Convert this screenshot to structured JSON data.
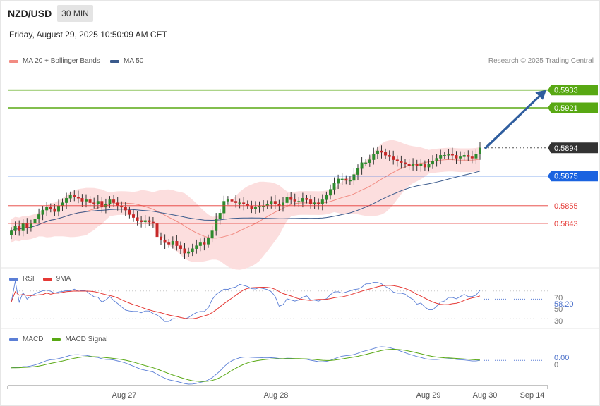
{
  "header": {
    "symbol": "NZD/USD",
    "timeframe": "30 MIN",
    "datetime": "Friday, August 29, 2025 10:50:09 AM CET",
    "credit": "Research © 2025 Trading Central"
  },
  "colors": {
    "ma20": "#f28b82",
    "ma50": "#3a5a8c",
    "band_fill": "#fcdede",
    "resistance": "#58a813",
    "support": "#1a63e0",
    "pivot_red": "#e53935",
    "candle_up": "#2e8b2e",
    "candle_down": "#c62828",
    "arrow": "#2f5d9e",
    "rsi": "#5b7fd6",
    "rsi_ma": "#e53935",
    "macd": "#5b7fd6",
    "macd_signal": "#58a813"
  },
  "chart_data": [
    {
      "type": "candlestick",
      "legend": [
        "MA 20 + Bollinger Bands",
        "MA 50"
      ],
      "x_ticks": [
        "Aug 27",
        "Aug 28",
        "Aug 29",
        "Aug 30",
        "Sep 14"
      ],
      "ylim": [
        0.5814,
        0.595
      ],
      "levels": [
        {
          "value": 0.5933,
          "label": "0.5933",
          "kind": "resistance"
        },
        {
          "value": 0.5921,
          "label": "0.5921",
          "kind": "resistance"
        },
        {
          "value": 0.5894,
          "label": "0.5894",
          "kind": "last"
        },
        {
          "value": 0.5875,
          "label": "0.5875",
          "kind": "support"
        },
        {
          "value": 0.5855,
          "label": "0.5855",
          "kind": "pivot"
        },
        {
          "value": 0.5843,
          "label": "0.5843",
          "kind": "pivot"
        }
      ],
      "close": [
        0.5838,
        0.5841,
        0.5838,
        0.5843,
        0.584,
        0.5843,
        0.5846,
        0.5849,
        0.5852,
        0.5854,
        0.5853,
        0.5851,
        0.5855,
        0.5857,
        0.586,
        0.5862,
        0.5861,
        0.586,
        0.5858,
        0.5859,
        0.5857,
        0.5856,
        0.5858,
        0.5854,
        0.5856,
        0.5859,
        0.5857,
        0.5855,
        0.5854,
        0.5852,
        0.5849,
        0.5847,
        0.5845,
        0.5844,
        0.5845,
        0.5844,
        0.5843,
        0.5834,
        0.5832,
        0.583,
        0.5829,
        0.5831,
        0.5828,
        0.5826,
        0.5823,
        0.5824,
        0.5826,
        0.5828,
        0.583,
        0.5829,
        0.5833,
        0.5838,
        0.5846,
        0.585,
        0.5858,
        0.5859,
        0.5858,
        0.5857,
        0.5857,
        0.5856,
        0.5855,
        0.5853,
        0.5854,
        0.5855,
        0.5855,
        0.5856,
        0.5858,
        0.5856,
        0.5855,
        0.5857,
        0.5861,
        0.5859,
        0.5858,
        0.5858,
        0.586,
        0.5859,
        0.5856,
        0.5857,
        0.5856,
        0.5859,
        0.5862,
        0.5866,
        0.587,
        0.5873,
        0.5873,
        0.5872,
        0.5872,
        0.5876,
        0.588,
        0.5884,
        0.5884,
        0.5886,
        0.589,
        0.5892,
        0.5891,
        0.5889,
        0.5888,
        0.5886,
        0.5885,
        0.5884,
        0.5883,
        0.5882,
        0.5883,
        0.5882,
        0.5883,
        0.5881,
        0.5883,
        0.5885,
        0.5887,
        0.5889,
        0.5889,
        0.589,
        0.5889,
        0.5887,
        0.5888,
        0.5889,
        0.5888,
        0.5887,
        0.589,
        0.5894
      ],
      "ma20_end": 0.5887,
      "ma50_end": 0.588
    },
    {
      "type": "line",
      "legend": [
        "RSI",
        "9MA"
      ],
      "yticks": [
        "70",
        "50",
        "30"
      ],
      "last_value": "58.20",
      "ylim": [
        20,
        85
      ]
    },
    {
      "type": "line",
      "legend": [
        "MACD",
        "MACD Signal"
      ],
      "yticks": [
        "0"
      ],
      "last_value": "0.00"
    }
  ]
}
